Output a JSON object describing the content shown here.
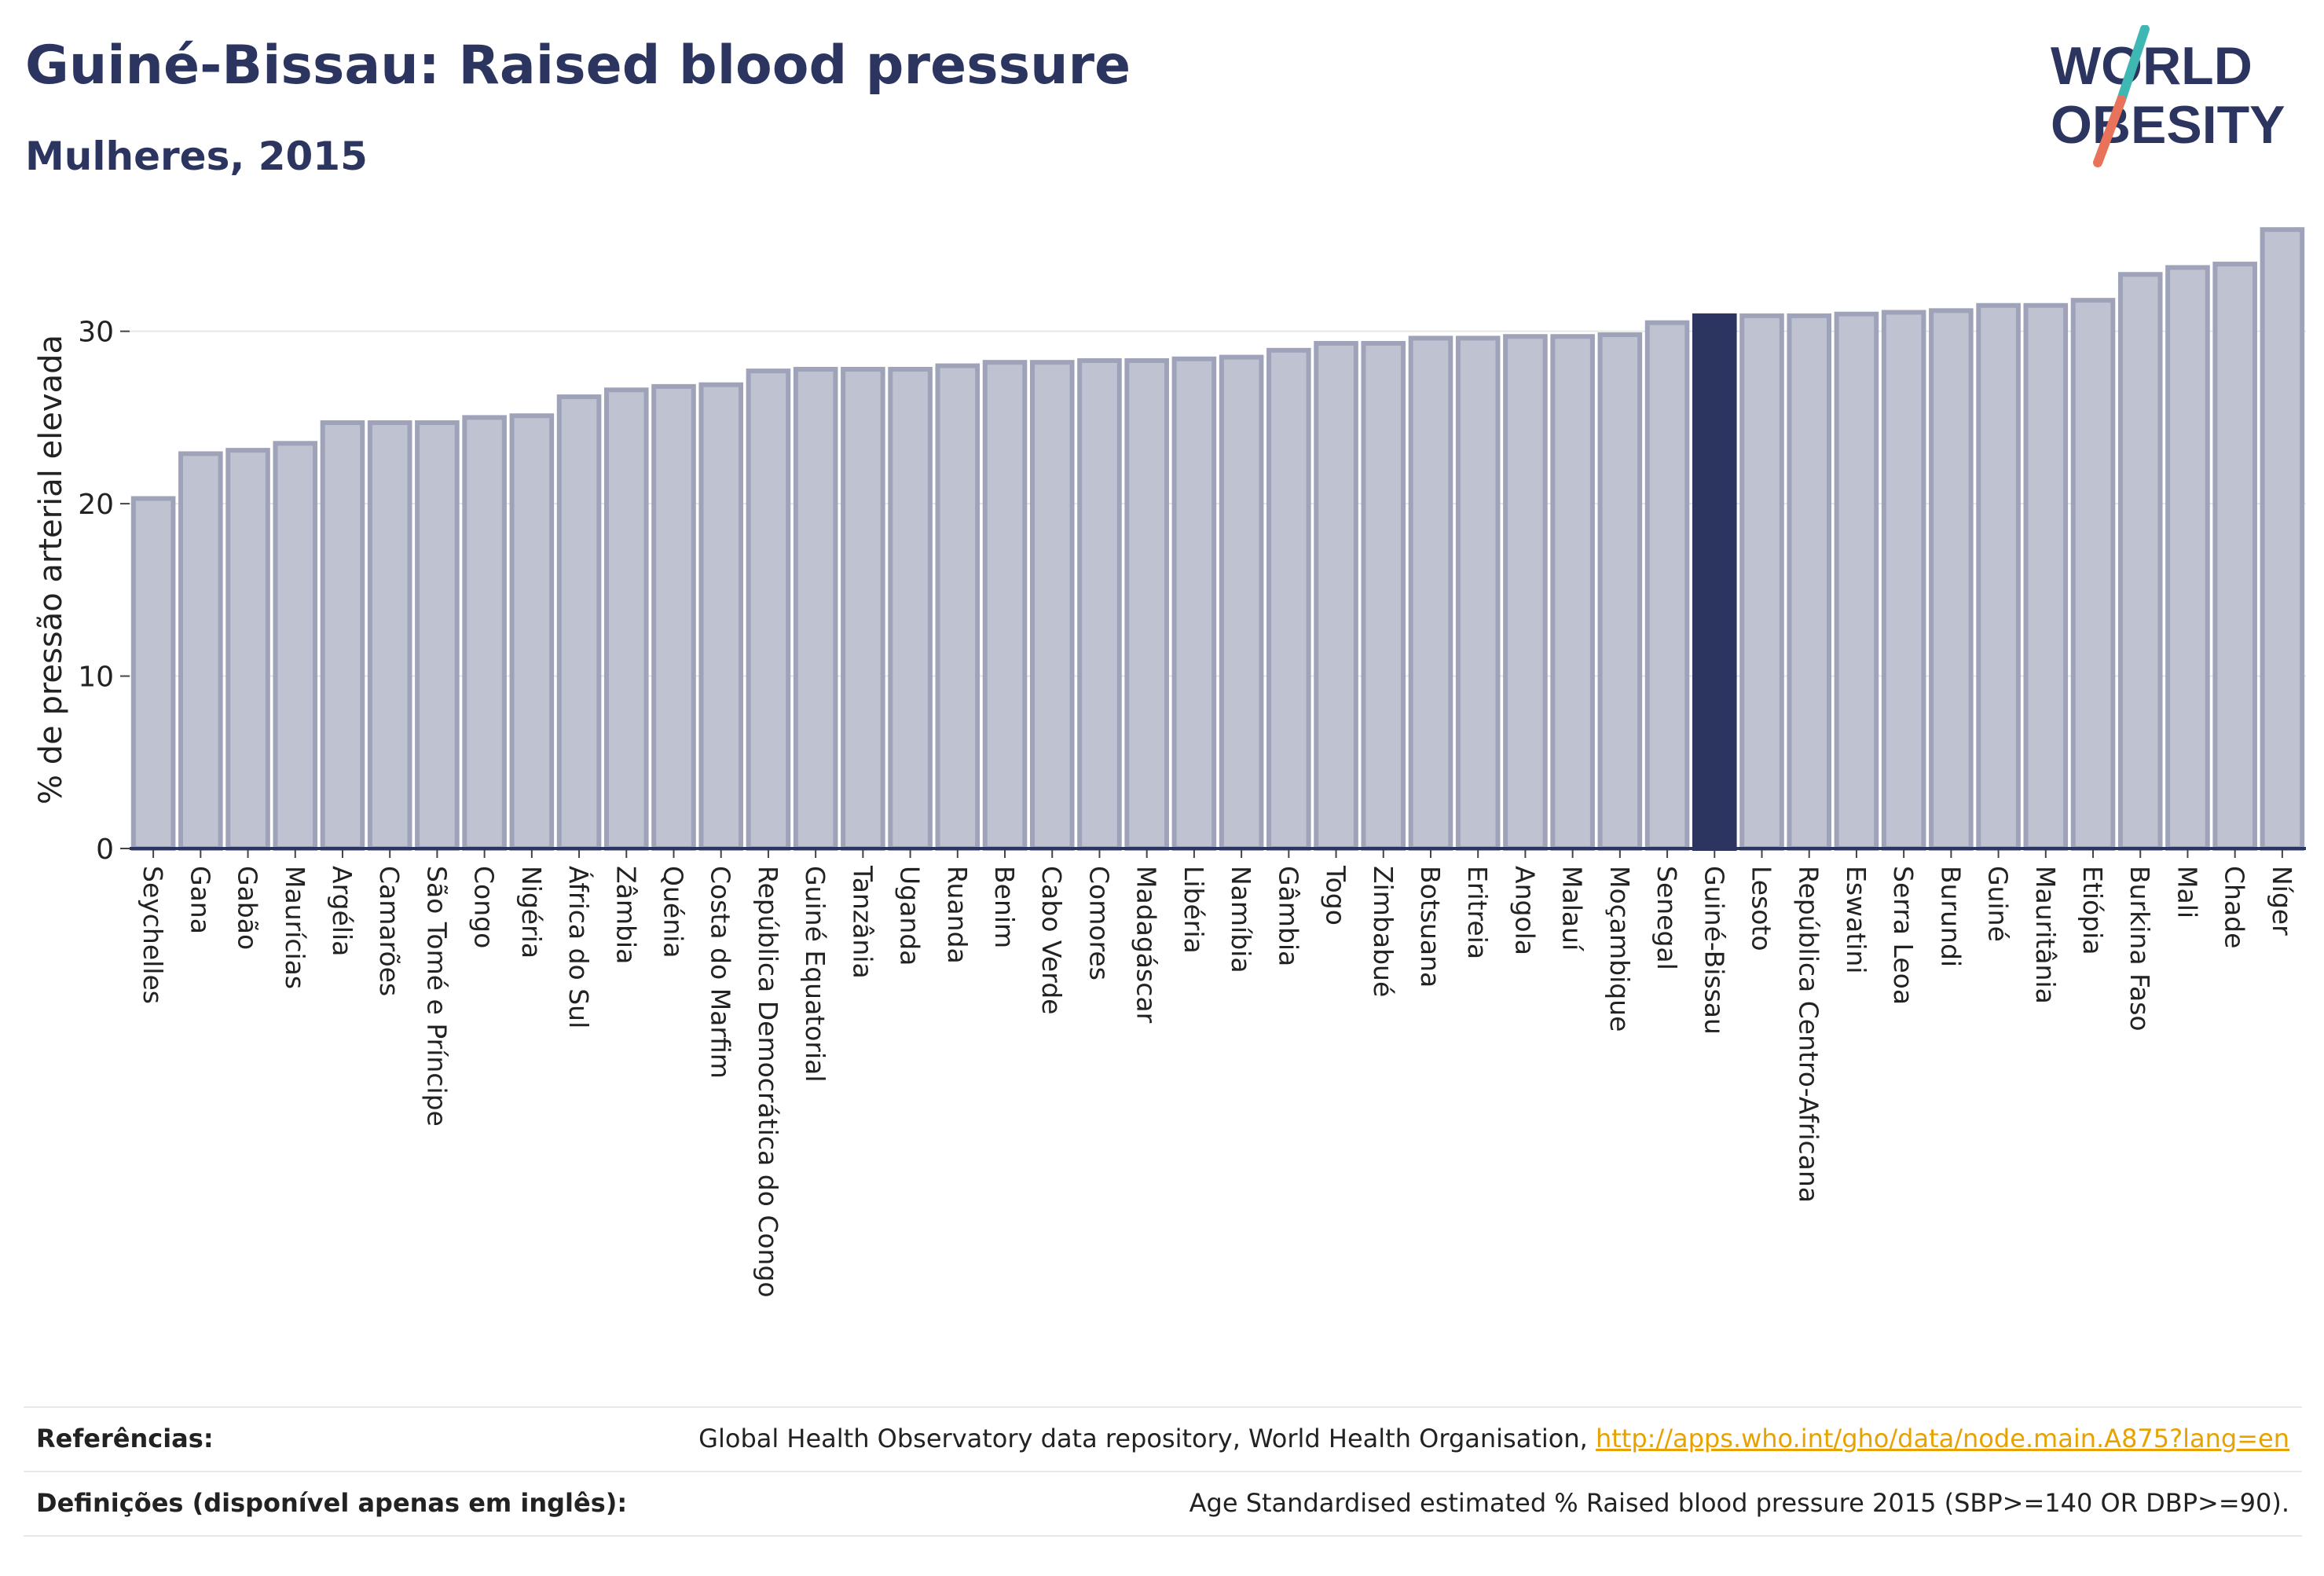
{
  "header": {
    "title": "Guiné-Bissau: Raised blood pressure",
    "subtitle": "Mulheres, 2015"
  },
  "logo": {
    "line1": "WORLD",
    "line2": "OBESITY",
    "icon": "world-obesity-logo"
  },
  "colors": {
    "highlight": "#2b3560",
    "bar_fill": "#bfc2d0",
    "bar_stroke": "#9ea3ba",
    "accent_teal": "#3fb8b4",
    "accent_coral": "#e8735a",
    "link": "#e8a200"
  },
  "chart_data": {
    "type": "bar",
    "ylabel": "% de pressão arterial elevada",
    "ylim": [
      0,
      36
    ],
    "yticks": [
      0,
      10,
      20,
      30
    ],
    "grid": true,
    "highlight": "Guiné-Bissau",
    "categories": [
      "Seychelles",
      "Gana",
      "Gabão",
      "Maurícias",
      "Argélia",
      "Camarões",
      "São Tomé e Príncipe",
      "Congo",
      "Nigéria",
      "África do Sul",
      "Zâmbia",
      "Quénia",
      "Costa do Marfim",
      "República Democrática do Congo",
      "Guiné Equatorial",
      "Tanzânia",
      "Uganda",
      "Ruanda",
      "Benim",
      "Cabo Verde",
      "Comores",
      "Madagáscar",
      "Libéria",
      "Namíbia",
      "Gâmbia",
      "Togo",
      "Zimbabué",
      "Botsuana",
      "Eritreia",
      "Angola",
      "Malauí",
      "Moçambique",
      "Senegal",
      "Guiné-Bissau",
      "Lesoto",
      "República Centro-Africana",
      "Eswatini",
      "Serra Leoa",
      "Burundi",
      "Guiné",
      "Mauritânia",
      "Etiópia",
      "Burkina Faso",
      "Mali",
      "Chade",
      "Níger"
    ],
    "values": [
      20.3,
      22.9,
      23.1,
      23.5,
      24.7,
      24.7,
      24.7,
      25.0,
      25.1,
      26.2,
      26.6,
      26.8,
      26.9,
      27.7,
      27.8,
      27.8,
      27.8,
      28.0,
      28.2,
      28.2,
      28.3,
      28.3,
      28.4,
      28.5,
      28.9,
      29.3,
      29.3,
      29.6,
      29.6,
      29.7,
      29.7,
      29.8,
      30.5,
      30.9,
      30.9,
      30.9,
      31.0,
      31.1,
      31.2,
      31.5,
      31.5,
      31.8,
      33.3,
      33.7,
      33.9,
      35.9
    ]
  },
  "footer": {
    "references_label": "Referências:",
    "references_text": "Global Health Observatory data repository, World Health Organisation, ",
    "references_link": "http://apps.who.int/gho/data/node.main.A875?lang=en",
    "definitions_label": "Definições (disponível apenas em inglês):",
    "definitions_text": "Age Standardised estimated % Raised blood pressure 2015 (SBP>=140 OR DBP>=90)."
  }
}
